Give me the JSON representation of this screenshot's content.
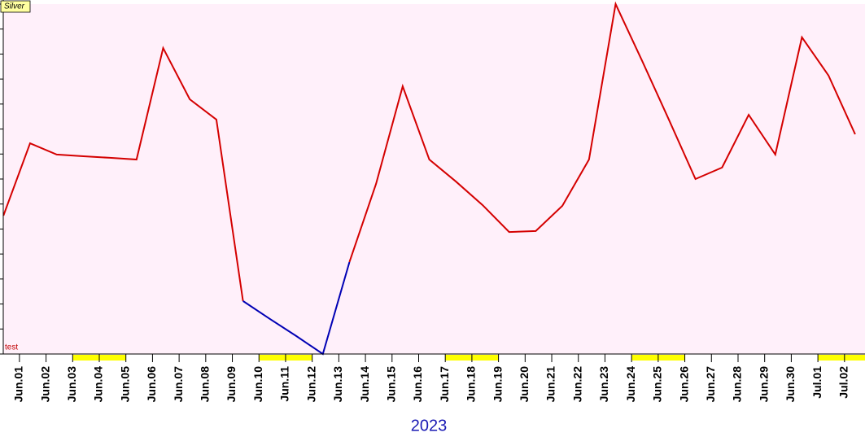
{
  "chart_data": {
    "type": "line",
    "title": "Silver",
    "annotation": "test",
    "x_label": "2023",
    "x": [
      0.4,
      1.4,
      2.4,
      3.4,
      4.4,
      5.4,
      6.4,
      7.4,
      8.4,
      9.4,
      10.4,
      11.4,
      12.4,
      13.4,
      14.4,
      15.4,
      16.4,
      17.4,
      18.4,
      19.4,
      20.4,
      21.4,
      22.4,
      23.4,
      24.4,
      25.4,
      26.4,
      27.4,
      28.4,
      29.4,
      30.4,
      31.4,
      32.4
    ],
    "series": [
      {
        "color": "#d40000",
        "values": [
          5.54,
          8.43,
          7.98,
          7.91,
          7.85,
          7.78,
          12.24,
          10.19,
          9.38,
          2.12,
          null,
          null,
          null,
          3.68,
          6.81,
          10.71,
          7.78,
          6.9,
          5.96,
          4.88,
          4.92,
          5.93,
          7.78,
          14,
          11.72,
          9.38,
          7.0,
          7.46,
          9.57,
          7.98,
          12.67,
          11.14,
          8.79
        ]
      },
      {
        "color": "#0000b4",
        "values": [
          null,
          null,
          null,
          null,
          null,
          null,
          null,
          null,
          null,
          2.12,
          1.41,
          0.72,
          0,
          3.68,
          null,
          null,
          null,
          null,
          null,
          null,
          null,
          null,
          null,
          null,
          null,
          null,
          null,
          null,
          null,
          null,
          null,
          null,
          null
        ]
      }
    ],
    "xlim": [
      0.27,
      32.77
    ],
    "xticks": [
      {
        "value": 1,
        "label": "Jun.01"
      },
      {
        "value": 2,
        "label": "Jun.02"
      },
      {
        "value": 3,
        "label": "Jun.03"
      },
      {
        "value": 4,
        "label": "Jun.04"
      },
      {
        "value": 5,
        "label": "Jun.05"
      },
      {
        "value": 6,
        "label": "Jun.06"
      },
      {
        "value": 7,
        "label": "Jun.07"
      },
      {
        "value": 8,
        "label": "Jun.08"
      },
      {
        "value": 9,
        "label": "Jun.09"
      },
      {
        "value": 10,
        "label": "Jun.10"
      },
      {
        "value": 11,
        "label": "Jun.11"
      },
      {
        "value": 12,
        "label": "Jun.12"
      },
      {
        "value": 13,
        "label": "Jun.13"
      },
      {
        "value": 14,
        "label": "Jun.14"
      },
      {
        "value": 15,
        "label": "Jun.15"
      },
      {
        "value": 16,
        "label": "Jun.16"
      },
      {
        "value": 17,
        "label": "Jun.17"
      },
      {
        "value": 18,
        "label": "Jun.18"
      },
      {
        "value": 19,
        "label": "Jun.19"
      },
      {
        "value": 20,
        "label": "Jun.20"
      },
      {
        "value": 21,
        "label": "Jun.21"
      },
      {
        "value": 22,
        "label": "Jun.22"
      },
      {
        "value": 23,
        "label": "Jun.23"
      },
      {
        "value": 24,
        "label": "Jun.24"
      },
      {
        "value": 25,
        "label": "Jun.25"
      },
      {
        "value": 26,
        "label": "Jun.26"
      },
      {
        "value": 27,
        "label": "Jun.27"
      },
      {
        "value": 28,
        "label": "Jun.28"
      },
      {
        "value": 29,
        "label": "Jun.29"
      },
      {
        "value": 30,
        "label": "Jun.30"
      },
      {
        "value": 31,
        "label": "Jul.01"
      },
      {
        "value": 32,
        "label": "Jul.02"
      }
    ],
    "weekend_bands": [
      [
        3,
        5
      ],
      [
        10,
        12
      ],
      [
        17,
        19
      ],
      [
        24,
        26
      ],
      [
        31,
        32.77
      ]
    ],
    "band_color": "#ffff00",
    "ylim": [
      0,
      14
    ],
    "yticks": [
      0,
      1,
      2,
      3,
      4,
      5,
      6,
      7,
      8,
      9,
      10,
      11,
      12,
      13,
      14
    ],
    "plot_background": "#fff0fa"
  }
}
